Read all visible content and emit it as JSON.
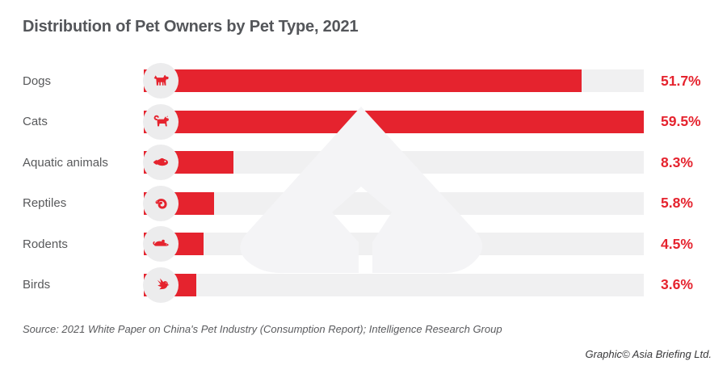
{
  "theme": {
    "accent": "#e5232e",
    "track": "#f0f0f1",
    "circle": "#ececed",
    "title_color": "#54565a",
    "label_color": "#58595b",
    "source_color": "#5a5b5e",
    "credit_color": "#38383a",
    "watermark": "#f4f4f6"
  },
  "chart_data": {
    "type": "bar",
    "orientation": "horizontal",
    "title": "Distribution of Pet Owners by Pet Type, 2021",
    "categories": [
      "Dogs",
      "Cats",
      "Aquatic animals",
      "Reptiles",
      "Rodents",
      "Birds"
    ],
    "values": [
      51.7,
      59.5,
      8.3,
      5.8,
      4.5,
      3.6
    ],
    "value_labels": [
      "51.7%",
      "59.5%",
      "8.3%",
      "5.8%",
      "4.5%",
      "3.6%"
    ],
    "unit": "%",
    "xlim": [
      0,
      59.5
    ],
    "grid": false,
    "legend": false,
    "icons": [
      "dog",
      "cat",
      "fish",
      "reptile",
      "rodent",
      "bird"
    ]
  },
  "footer": {
    "source": "Source: 2021 White Paper on China's Pet Industry (Consumption Report); Intelligence Research Group",
    "credit": "Graphic© Asia Briefing Ltd."
  }
}
